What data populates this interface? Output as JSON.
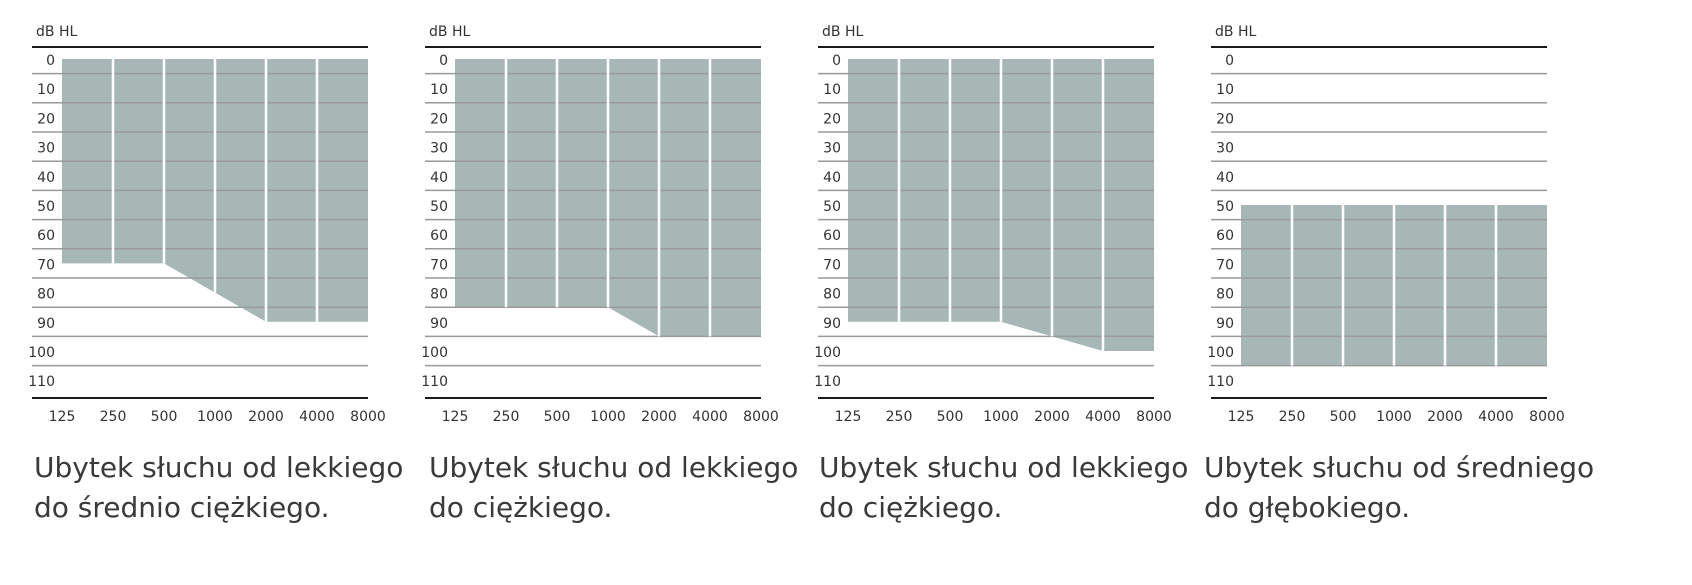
{
  "colors": {
    "fill": "#a6b7b6",
    "grid": "#9a9a9a",
    "axis": "#1a1a1a",
    "divider": "#ffffff"
  },
  "chart_data": [
    {
      "type": "area",
      "ylabel": "dB HL",
      "yticks": [
        0,
        10,
        20,
        30,
        40,
        50,
        60,
        70,
        80,
        90,
        100,
        110
      ],
      "ylim": [
        -4,
        120
      ],
      "y_inverted": true,
      "x": [
        125,
        250,
        500,
        1000,
        2000,
        4000,
        8000
      ],
      "x_scale": "log",
      "band_top": [
        0,
        0,
        0,
        0,
        0,
        0,
        0
      ],
      "band_bottom": [
        70,
        70,
        70,
        80,
        90,
        90,
        90
      ],
      "caption": [
        "Ubytek słuchu od lekkiego",
        "do średnio ciężkiego."
      ]
    },
    {
      "type": "area",
      "ylabel": "dB HL",
      "yticks": [
        0,
        10,
        20,
        30,
        40,
        50,
        60,
        70,
        80,
        90,
        100,
        110
      ],
      "ylim": [
        -4,
        120
      ],
      "y_inverted": true,
      "x": [
        125,
        250,
        500,
        1000,
        2000,
        4000,
        8000
      ],
      "x_scale": "log",
      "band_top": [
        0,
        0,
        0,
        0,
        0,
        0,
        0
      ],
      "band_bottom": [
        85,
        85,
        85,
        85,
        95,
        95,
        95
      ],
      "caption": [
        "Ubytek słuchu od lekkiego",
        "do ciężkiego."
      ]
    },
    {
      "type": "area",
      "ylabel": "dB HL",
      "yticks": [
        0,
        10,
        20,
        30,
        40,
        50,
        60,
        70,
        80,
        90,
        100,
        110
      ],
      "ylim": [
        -4,
        120
      ],
      "y_inverted": true,
      "x": [
        125,
        250,
        500,
        1000,
        2000,
        4000,
        8000
      ],
      "x_scale": "log",
      "band_top": [
        0,
        0,
        0,
        0,
        0,
        0,
        0
      ],
      "band_bottom": [
        90,
        90,
        90,
        90,
        95,
        100,
        100
      ],
      "caption": [
        "Ubytek słuchu od lekkiego",
        "do ciężkiego."
      ]
    },
    {
      "type": "area",
      "ylabel": "dB HL",
      "yticks": [
        0,
        10,
        20,
        30,
        40,
        50,
        60,
        70,
        80,
        90,
        100,
        110
      ],
      "ylim": [
        -4,
        120
      ],
      "y_inverted": true,
      "x": [
        125,
        250,
        500,
        1000,
        2000,
        4000,
        8000
      ],
      "x_scale": "log",
      "band_top": [
        50,
        50,
        50,
        50,
        50,
        50,
        50
      ],
      "band_bottom": [
        105,
        105,
        105,
        105,
        105,
        105,
        105
      ],
      "caption": [
        "Ubytek słuchu od średniego",
        "do głębokiego."
      ]
    }
  ]
}
